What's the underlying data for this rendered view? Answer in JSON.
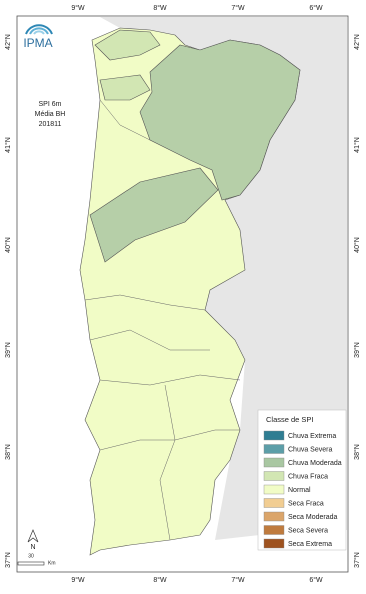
{
  "header": {
    "logo": "IPMA",
    "index": "SPI 6m",
    "basin": "Média BH",
    "date": "201811"
  },
  "lon_labels": [
    "9°W",
    "8°W",
    "7°W",
    "6°W"
  ],
  "lat_labels": [
    "42°N",
    "41°N",
    "40°N",
    "39°N",
    "38°N",
    "37°N"
  ],
  "legend": {
    "title": "Classe de SPI",
    "items": [
      {
        "label": "Chuva Extrema",
        "color": "#2f7d92"
      },
      {
        "label": "Chuva Severa",
        "color": "#5c9ea8"
      },
      {
        "label": "Chuva Moderada",
        "color": "#a9c7a2"
      },
      {
        "label": "Chuva Fraca",
        "color": "#d2e6b3"
      },
      {
        "label": "Normal",
        "color": "#f1fcc6"
      },
      {
        "label": "Seca Fraca",
        "color": "#f1cd92"
      },
      {
        "label": "Seca Moderada",
        "color": "#dba56a"
      },
      {
        "label": "Seca Severa",
        "color": "#bf7b3e"
      },
      {
        "label": "Seca Extrema",
        "color": "#9e521f"
      }
    ]
  },
  "north_arrow": "N",
  "scale": {
    "value": "30",
    "unit": "Km"
  }
}
